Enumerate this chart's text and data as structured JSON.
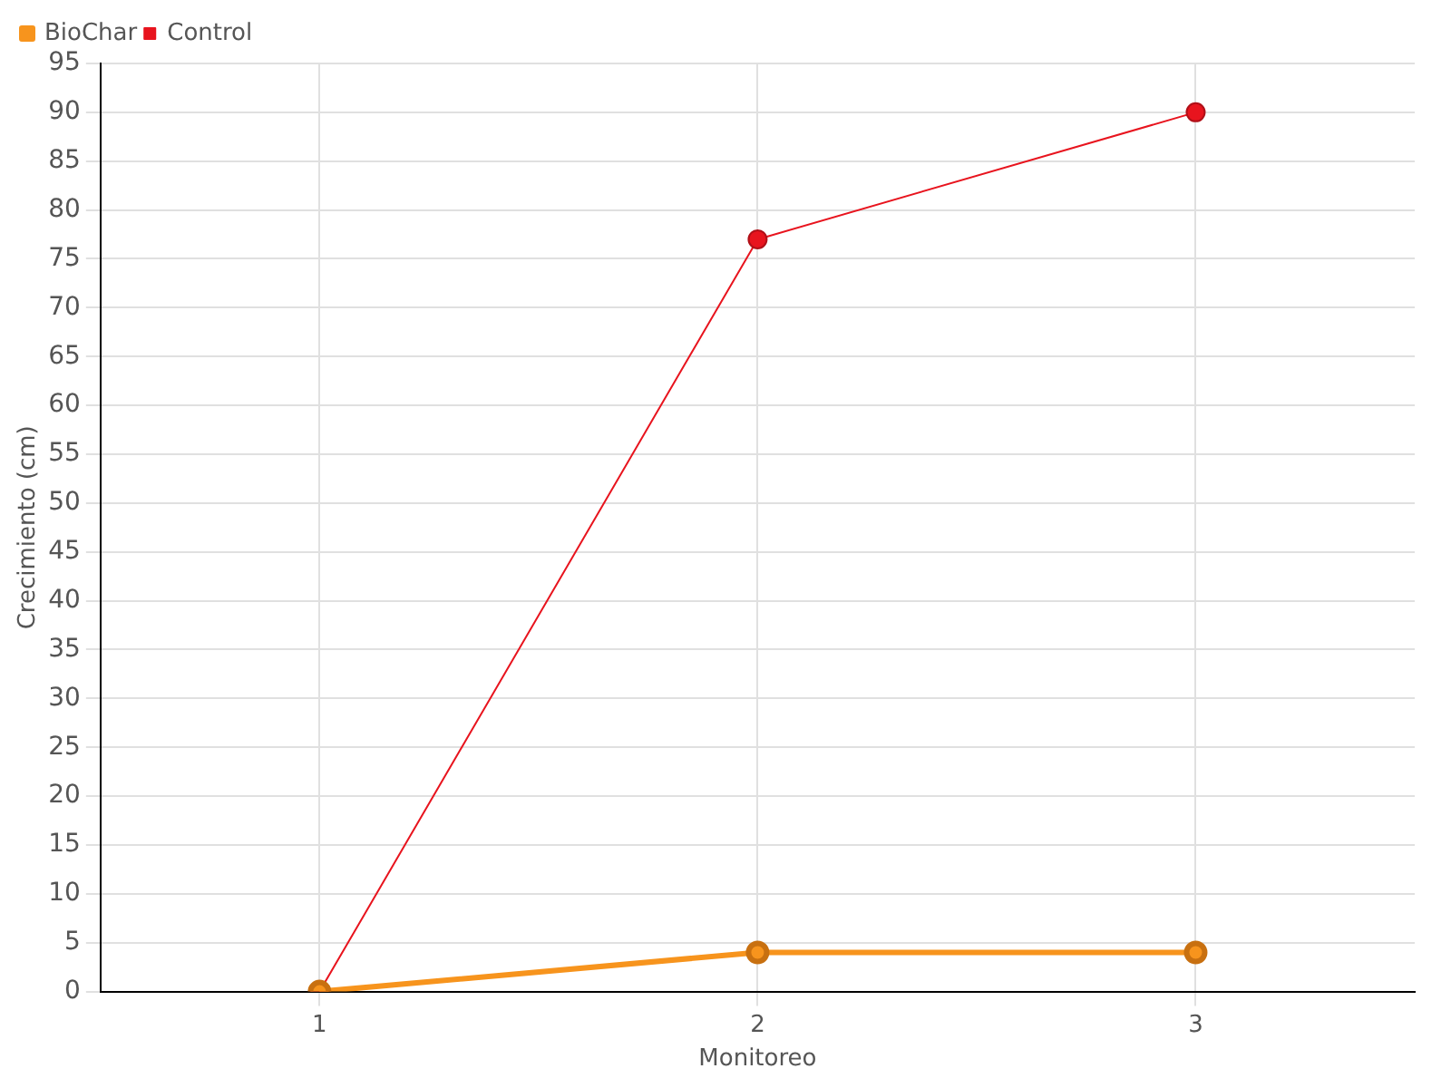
{
  "chart_data": {
    "type": "line",
    "xlabel": "Monitoreo",
    "ylabel": "Crecimiento (cm)",
    "categories": [
      "1",
      "2",
      "3"
    ],
    "series": [
      {
        "name": "BioChar",
        "color": "#f7941d",
        "values": [
          0,
          4,
          4
        ]
      },
      {
        "name": "Control",
        "color": "#e8141e",
        "values": [
          0,
          77,
          90
        ]
      }
    ],
    "ylim": [
      0,
      95
    ],
    "yticks": [
      0,
      5,
      10,
      15,
      20,
      25,
      30,
      35,
      40,
      45,
      50,
      55,
      60,
      65,
      70,
      75,
      80,
      85,
      90,
      95
    ],
    "grid": true,
    "legend": "top left",
    "marker": "circle",
    "line_style": "solid"
  }
}
